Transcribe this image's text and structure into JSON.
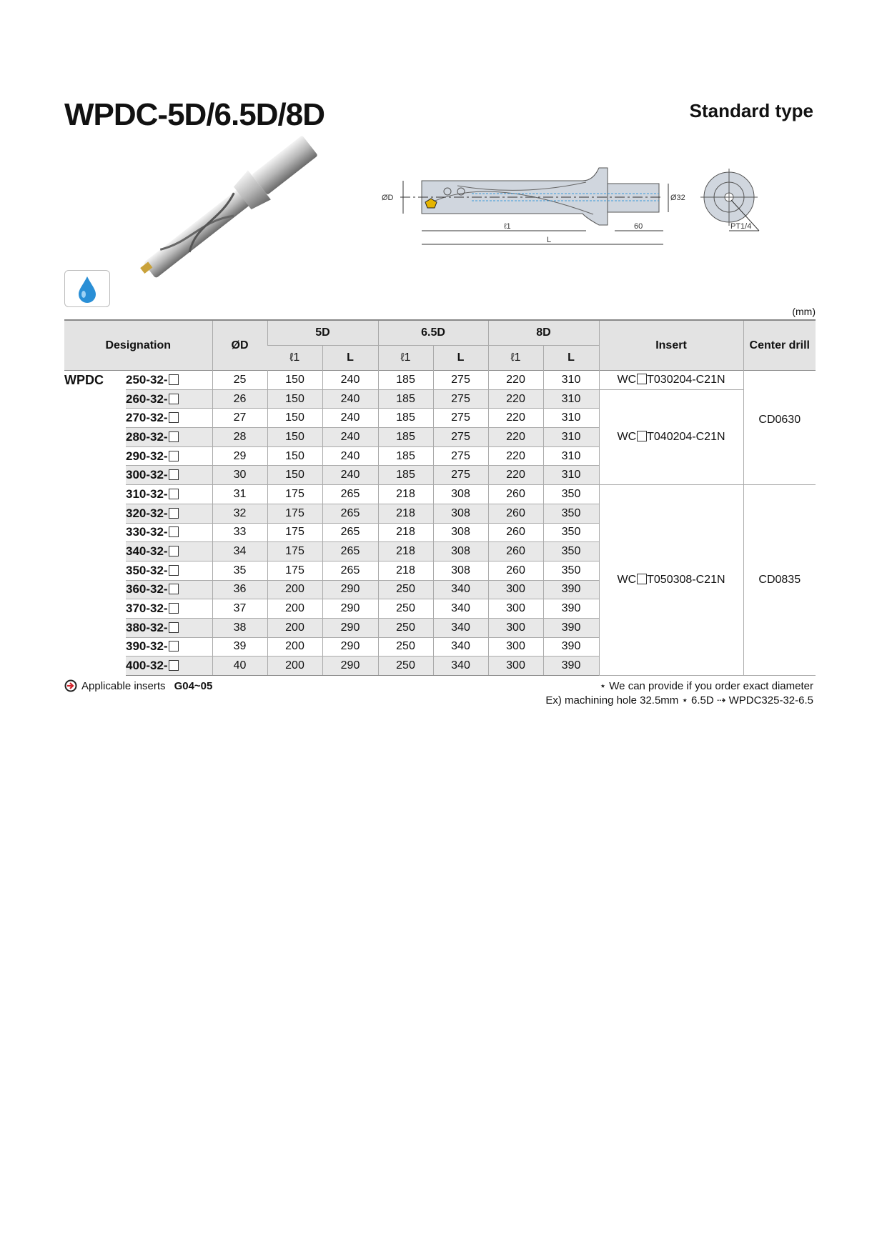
{
  "title": "WPDC-5D/6.5D/8D",
  "subtitle": "Standard type",
  "unit": "(mm)",
  "icons": {
    "coolant": "water-drop-icon",
    "applicable": "arrow-circle-icon"
  },
  "drawing": {
    "od": "ØD",
    "shank": "Ø32",
    "l1": "ℓ1",
    "L": "L",
    "shank_len": "60",
    "port": "PT1/4"
  },
  "table": {
    "headers": {
      "designation": "Designation",
      "od": "ØD",
      "d5": "5D",
      "d65": "6.5D",
      "d8": "8D",
      "l1": "ℓ1",
      "L": "L",
      "insert": "Insert",
      "center_drill": "Center drill"
    },
    "series": "WPDC",
    "rows": [
      {
        "des": "250-32-",
        "od": "25",
        "l1_5": "150",
        "L_5": "240",
        "l1_65": "185",
        "L_65": "275",
        "l1_8": "220",
        "L_8": "310"
      },
      {
        "des": "260-32-",
        "od": "26",
        "l1_5": "150",
        "L_5": "240",
        "l1_65": "185",
        "L_65": "275",
        "l1_8": "220",
        "L_8": "310"
      },
      {
        "des": "270-32-",
        "od": "27",
        "l1_5": "150",
        "L_5": "240",
        "l1_65": "185",
        "L_65": "275",
        "l1_8": "220",
        "L_8": "310"
      },
      {
        "des": "280-32-",
        "od": "28",
        "l1_5": "150",
        "L_5": "240",
        "l1_65": "185",
        "L_65": "275",
        "l1_8": "220",
        "L_8": "310"
      },
      {
        "des": "290-32-",
        "od": "29",
        "l1_5": "150",
        "L_5": "240",
        "l1_65": "185",
        "L_65": "275",
        "l1_8": "220",
        "L_8": "310"
      },
      {
        "des": "300-32-",
        "od": "30",
        "l1_5": "150",
        "L_5": "240",
        "l1_65": "185",
        "L_65": "275",
        "l1_8": "220",
        "L_8": "310"
      },
      {
        "des": "310-32-",
        "od": "31",
        "l1_5": "175",
        "L_5": "265",
        "l1_65": "218",
        "L_65": "308",
        "l1_8": "260",
        "L_8": "350"
      },
      {
        "des": "320-32-",
        "od": "32",
        "l1_5": "175",
        "L_5": "265",
        "l1_65": "218",
        "L_65": "308",
        "l1_8": "260",
        "L_8": "350"
      },
      {
        "des": "330-32-",
        "od": "33",
        "l1_5": "175",
        "L_5": "265",
        "l1_65": "218",
        "L_65": "308",
        "l1_8": "260",
        "L_8": "350"
      },
      {
        "des": "340-32-",
        "od": "34",
        "l1_5": "175",
        "L_5": "265",
        "l1_65": "218",
        "L_65": "308",
        "l1_8": "260",
        "L_8": "350"
      },
      {
        "des": "350-32-",
        "od": "35",
        "l1_5": "175",
        "L_5": "265",
        "l1_65": "218",
        "L_65": "308",
        "l1_8": "260",
        "L_8": "350"
      },
      {
        "des": "360-32-",
        "od": "36",
        "l1_5": "200",
        "L_5": "290",
        "l1_65": "250",
        "L_65": "340",
        "l1_8": "300",
        "L_8": "390"
      },
      {
        "des": "370-32-",
        "od": "37",
        "l1_5": "200",
        "L_5": "290",
        "l1_65": "250",
        "L_65": "340",
        "l1_8": "300",
        "L_8": "390"
      },
      {
        "des": "380-32-",
        "od": "38",
        "l1_5": "200",
        "L_5": "290",
        "l1_65": "250",
        "L_65": "340",
        "l1_8": "300",
        "L_8": "390"
      },
      {
        "des": "390-32-",
        "od": "39",
        "l1_5": "200",
        "L_5": "290",
        "l1_65": "250",
        "L_65": "340",
        "l1_8": "300",
        "L_8": "390"
      },
      {
        "des": "400-32-",
        "od": "40",
        "l1_5": "200",
        "L_5": "290",
        "l1_65": "250",
        "L_65": "340",
        "l1_8": "300",
        "L_8": "390"
      }
    ],
    "inserts": [
      {
        "pre": "WC",
        "post": "T030204-C21N",
        "rows": 1
      },
      {
        "pre": "WC",
        "post": "T040204-C21N",
        "rows": 5
      },
      {
        "pre": "WC",
        "post": "T050308-C21N",
        "rows": 10
      }
    ],
    "center_drills": [
      {
        "value": "CD0630",
        "rows": 6
      },
      {
        "value": "CD0835",
        "rows": 10
      }
    ]
  },
  "footer": {
    "applicable_label": "Applicable inserts",
    "applicable_value": "G04~05",
    "note1": "⋆ We can provide if you order exact diameter",
    "note2": "Ex) machining hole 32.5mm ⋆ 6.5D ⇢ WPDC325-32-6.5"
  }
}
